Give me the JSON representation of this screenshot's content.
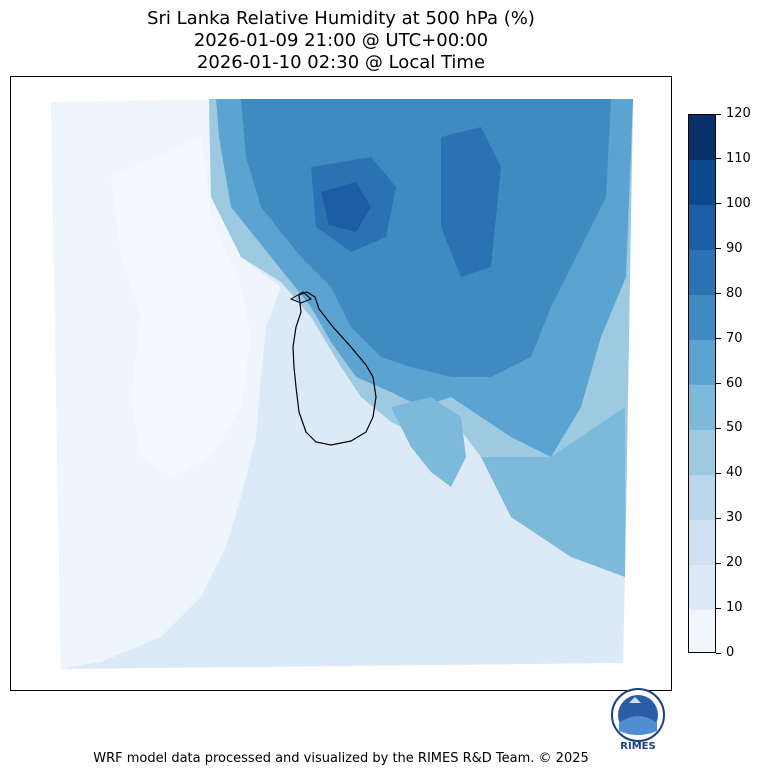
{
  "title": {
    "line1": "Sri Lanka Relative Humidity at 500 hPa (%)",
    "line2": "2026-01-09 21:00 @ UTC+00:00",
    "line3": "2026-01-10 02:30 @ Local Time"
  },
  "colorbar": {
    "ticks": [
      "0",
      "10",
      "20",
      "30",
      "40",
      "50",
      "60",
      "70",
      "80",
      "90",
      "100",
      "110",
      "120"
    ],
    "colors": [
      "#f0f6fc",
      "#dce9f6",
      "#cfe0f2",
      "#b9d6ea",
      "#9ecae1",
      "#7db9db",
      "#5ba3d0",
      "#3f8bc1",
      "#2b72b2",
      "#1b5ea6",
      "#0c4a8f",
      "#08306b"
    ]
  },
  "logo": {
    "text": "RIMES",
    "icon": "rimes-logo-icon"
  },
  "footer": "WRF model data processed and visualized by the RIMES R&D Team. © 2025"
}
